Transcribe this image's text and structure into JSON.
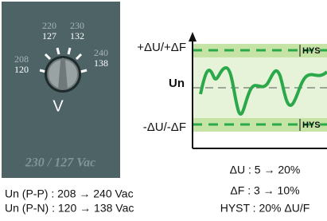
{
  "dial": {
    "labels": [
      {
        "top": "220",
        "bottom": "127"
      },
      {
        "top": "230",
        "bottom": "132"
      },
      {
        "top": "208",
        "bottom": "120"
      },
      {
        "top": "240",
        "bottom": "138"
      }
    ],
    "unit": "V",
    "caption": "230 / 127 Vac"
  },
  "specs": [
    "Un (P-P) : 208 → 240 Vac",
    "Un (P-N) : 120 → 138 Vac"
  ],
  "diagram": {
    "upper_label": "+ΔU/+ΔF",
    "center_label": "Un",
    "lower_label": "-ΔU/-ΔF",
    "hysteresis_label": "HYS"
  },
  "settings": [
    "ΔU : 5 → 20%",
    "ΔF : 3 → 10%",
    "HYST : 20% ΔU/F"
  ]
}
